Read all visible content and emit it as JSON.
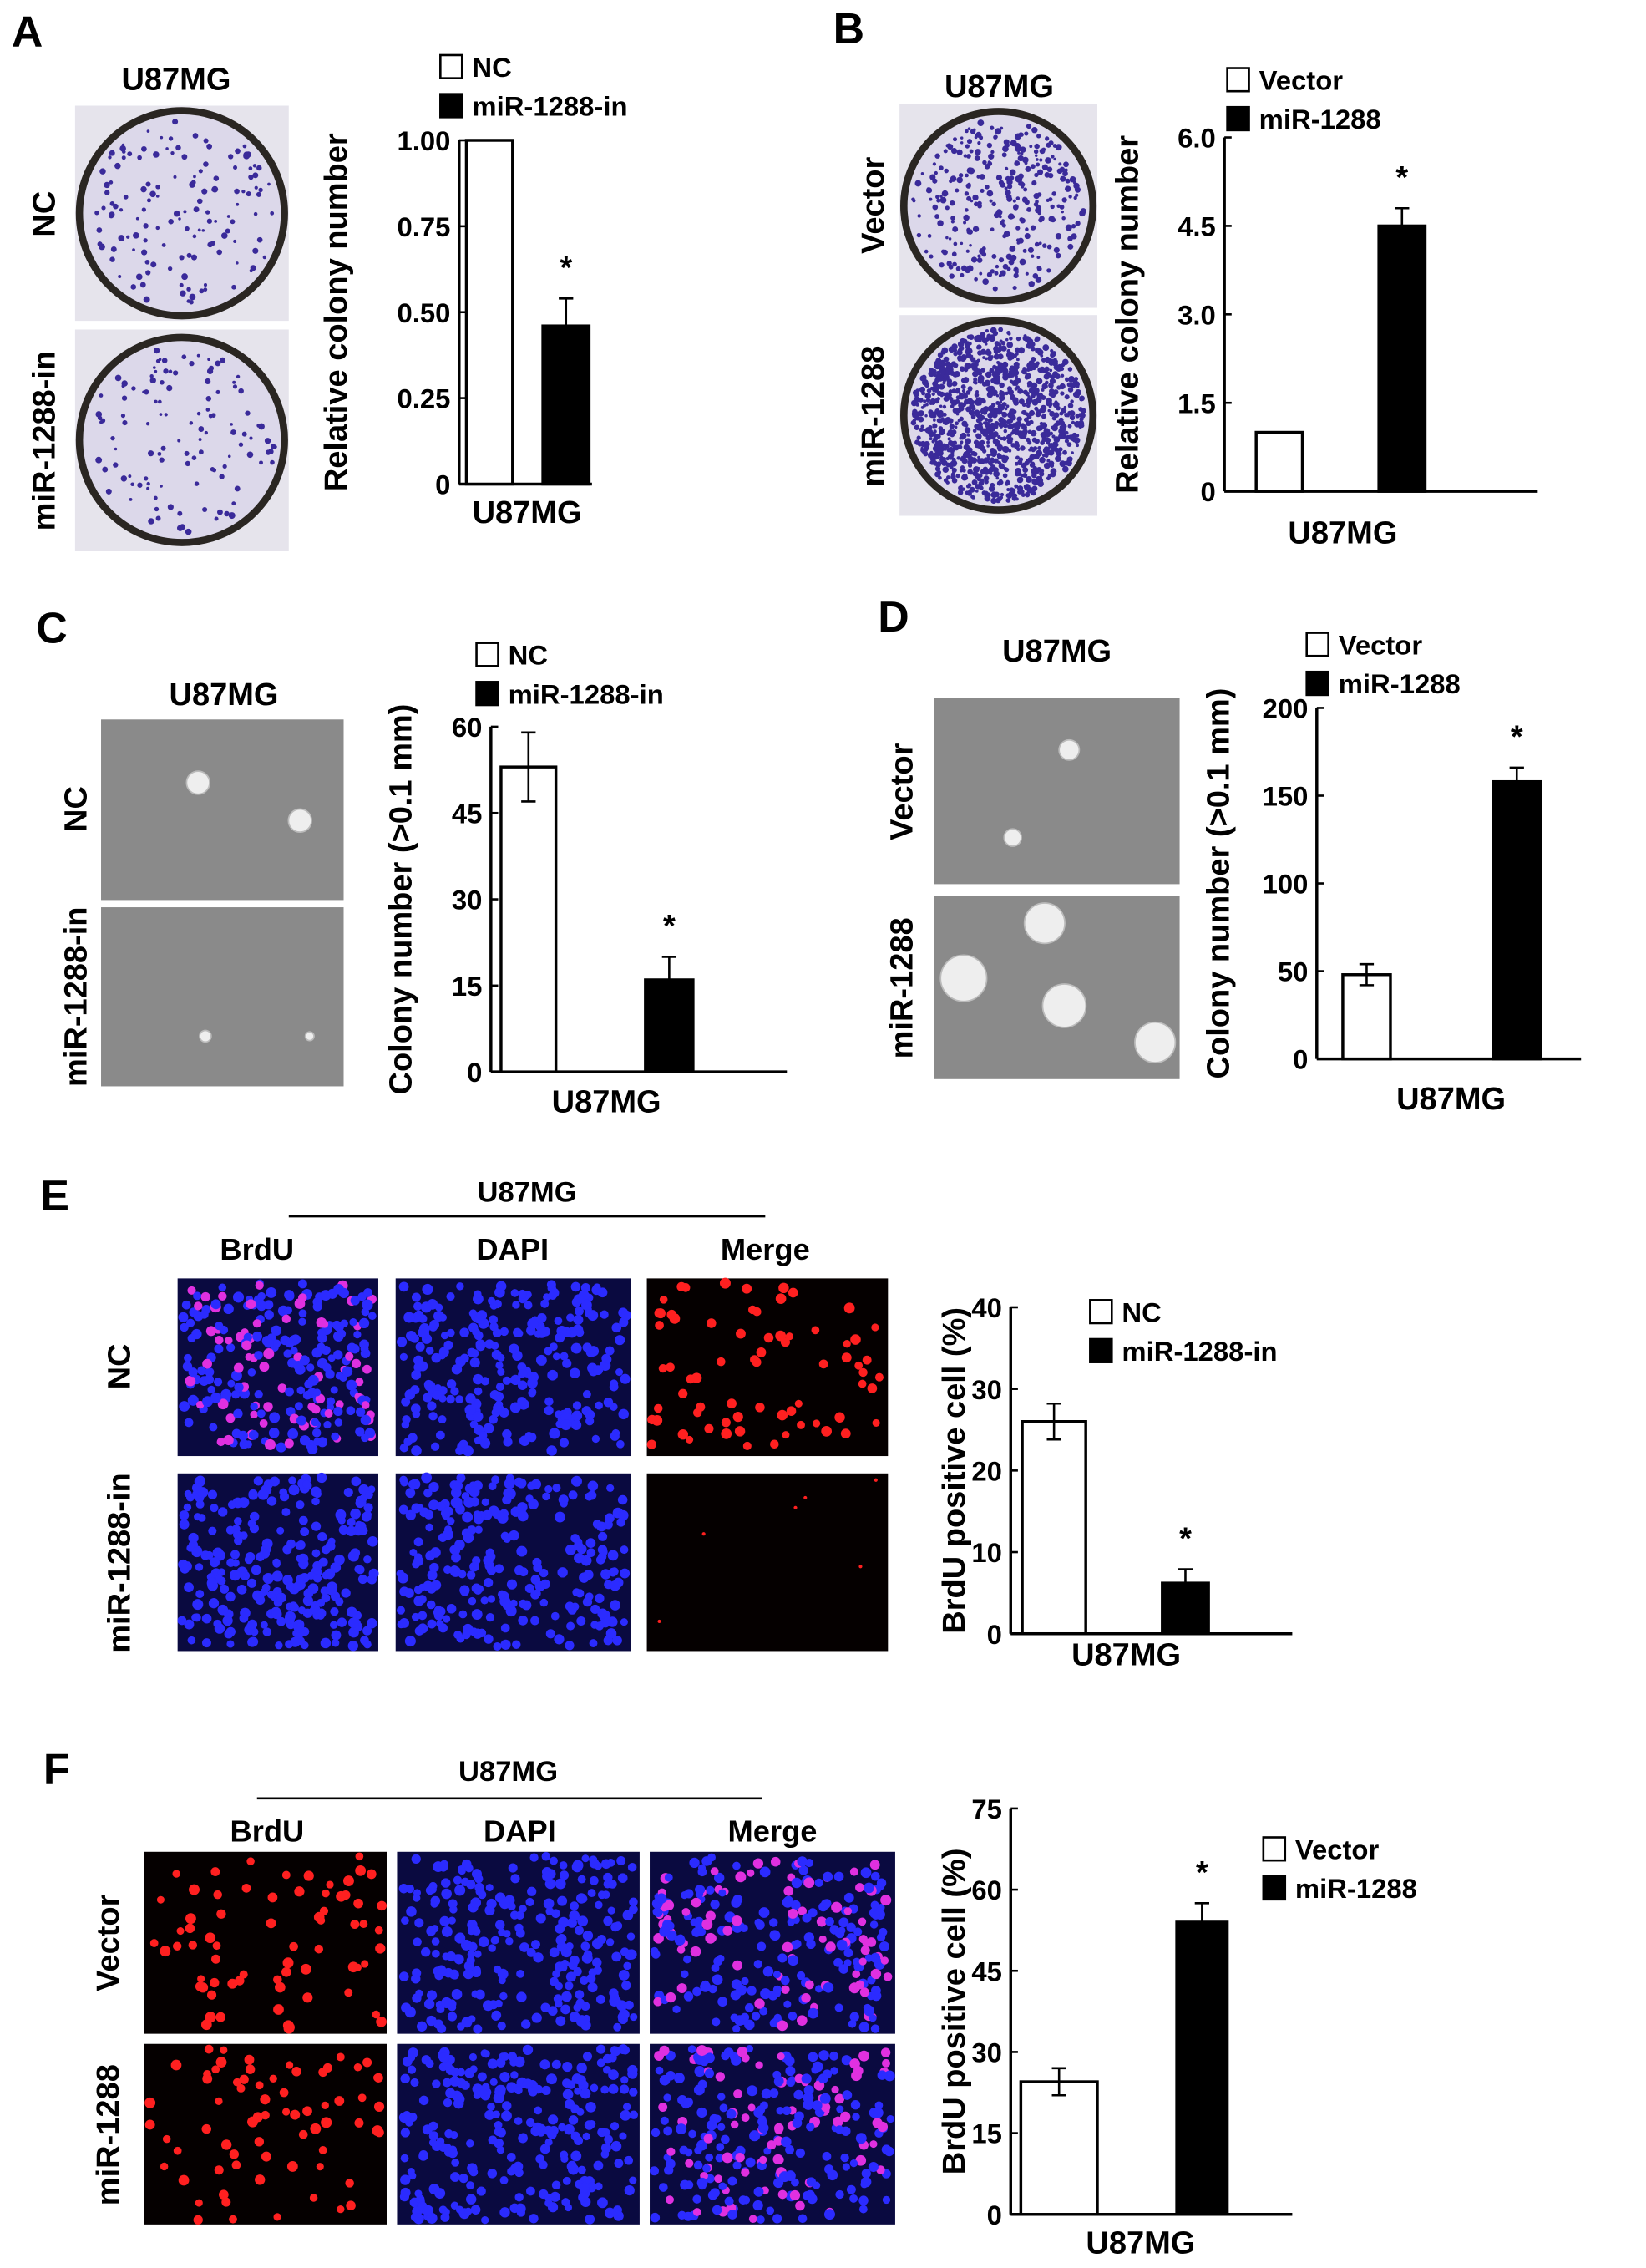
{
  "panels": {
    "A": {
      "letter": "A",
      "title": "U87MG",
      "rows": [
        "NC",
        "miR-1288-in"
      ]
    },
    "B": {
      "letter": "B",
      "title": "U87MG",
      "rows": [
        "Vector",
        "miR-1288"
      ]
    },
    "C": {
      "letter": "C",
      "title": "U87MG",
      "rows": [
        "NC",
        "miR-1288-in"
      ]
    },
    "D": {
      "letter": "D",
      "title": "U87MG",
      "rows": [
        "Vector",
        "miR-1288"
      ]
    },
    "E": {
      "letter": "E",
      "title": "U87MG",
      "columns": [
        "BrdU",
        "DAPI",
        "Merge"
      ],
      "rows": [
        "NC",
        "miR-1288-in"
      ]
    },
    "F": {
      "letter": "F",
      "title": "U87MG",
      "columns": [
        "BrdU",
        "DAPI",
        "Merge"
      ],
      "rows": [
        "Vector",
        "miR-1288"
      ]
    }
  },
  "chart_data": [
    {
      "panel": "A",
      "type": "bar",
      "categories": [
        "NC",
        "miR-1288-in"
      ],
      "values": [
        1.0,
        0.46
      ],
      "errors": [
        0,
        0.08
      ],
      "significance": [
        "",
        "*"
      ],
      "xlabel": "U87MG",
      "ylabel": "Relative colony number",
      "ylim": [
        0,
        1.0
      ],
      "yticks": [
        "0",
        "0.25",
        "0.50",
        "0.75",
        "1.00"
      ],
      "legend": [
        "NC",
        "miR-1288-in"
      ],
      "legend_position": "top",
      "colors": [
        "#ffffff",
        "#000000"
      ],
      "grid": false
    },
    {
      "panel": "B",
      "type": "bar",
      "categories": [
        "Vector",
        "miR-1288"
      ],
      "values": [
        1.0,
        4.5
      ],
      "errors": [
        0,
        0.3
      ],
      "significance": [
        "",
        "*"
      ],
      "xlabel": "U87MG",
      "ylabel": "Relative colony number",
      "ylim": [
        0,
        6.0
      ],
      "yticks": [
        "0",
        "1.5",
        "3.0",
        "4.5",
        "6.0"
      ],
      "legend": [
        "Vector",
        "miR-1288"
      ],
      "legend_position": "top",
      "colors": [
        "#ffffff",
        "#000000"
      ],
      "grid": false
    },
    {
      "panel": "C",
      "type": "bar",
      "categories": [
        "NC",
        "miR-1288-in"
      ],
      "values": [
        53,
        16
      ],
      "errors": [
        6,
        4
      ],
      "significance": [
        "",
        "*"
      ],
      "xlabel": "U87MG",
      "ylabel": "Colony number (>0.1 mm)",
      "ylim": [
        0,
        60
      ],
      "yticks": [
        "0",
        "15",
        "30",
        "45",
        "60"
      ],
      "legend": [
        "NC",
        "miR-1288-in"
      ],
      "legend_position": "top",
      "colors": [
        "#ffffff",
        "#000000"
      ],
      "grid": false
    },
    {
      "panel": "D",
      "type": "bar",
      "categories": [
        "Vector",
        "miR-1288"
      ],
      "values": [
        48,
        158
      ],
      "errors": [
        6,
        8
      ],
      "significance": [
        "",
        "*"
      ],
      "xlabel": "U87MG",
      "ylabel": "Colony number (>0.1 mm)",
      "ylim": [
        0,
        200
      ],
      "yticks": [
        "0",
        "50",
        "100",
        "150",
        "200"
      ],
      "legend": [
        "Vector",
        "miR-1288"
      ],
      "legend_position": "top",
      "colors": [
        "#ffffff",
        "#000000"
      ],
      "grid": false
    },
    {
      "panel": "E",
      "type": "bar",
      "categories": [
        "NC",
        "miR-1288-in"
      ],
      "values": [
        26,
        6.2
      ],
      "errors": [
        2.2,
        1.7
      ],
      "significance": [
        "",
        "*"
      ],
      "xlabel": "U87MG",
      "ylabel": "BrdU positive cell (%)",
      "ylim": [
        0,
        40
      ],
      "yticks": [
        "0",
        "10",
        "20",
        "30",
        "40"
      ],
      "legend": [
        "NC",
        "miR-1288-in"
      ],
      "legend_position": "top-right",
      "colors": [
        "#ffffff",
        "#000000"
      ],
      "grid": false
    },
    {
      "panel": "F",
      "type": "bar",
      "categories": [
        "Vector",
        "miR-1288"
      ],
      "values": [
        24.5,
        54
      ],
      "errors": [
        2.5,
        3.5
      ],
      "significance": [
        "",
        "*"
      ],
      "xlabel": "U87MG",
      "ylabel": "BrdU positive cell (%)",
      "ylim": [
        0,
        75
      ],
      "yticks": [
        "0",
        "15",
        "30",
        "45",
        "60",
        "75"
      ],
      "legend": [
        "Vector",
        "miR-1288"
      ],
      "legend_position": "top-right",
      "colors": [
        "#ffffff",
        "#000000"
      ],
      "grid": false
    }
  ]
}
